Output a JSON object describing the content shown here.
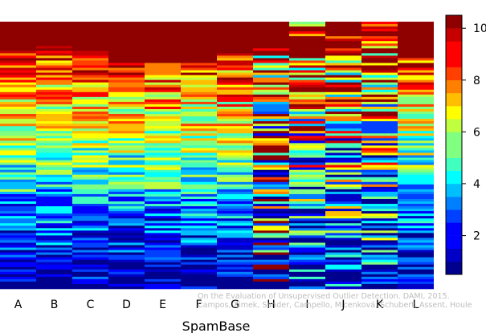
{
  "chart_data": {
    "type": "heatmap",
    "title": "",
    "xlabel": "SpamBase",
    "ylabel": "",
    "columns": [
      "A",
      "B",
      "C",
      "D",
      "E",
      "F",
      "G",
      "H",
      "I",
      "J",
      "K",
      "L"
    ],
    "value_range": [
      0.5,
      10.5
    ],
    "colorbar": {
      "ticks": [
        2,
        4,
        6,
        8,
        10
      ],
      "levels": 20,
      "colors": [
        "#00008f",
        "#0000c6",
        "#0000ff",
        "#0040ff",
        "#0080ff",
        "#00bfff",
        "#00ffff",
        "#40ffbf",
        "#80ff80",
        "#bfff40",
        "#ffff00",
        "#ffbf00",
        "#ff8000",
        "#ff4000",
        "#ff0000",
        "#c60000",
        "#8f0000"
      ]
    },
    "approx_fraction_of_rows_at_max_rank_top": [
      0.11,
      0.09,
      0.11,
      0.15,
      0.15,
      0.15,
      0.12,
      0.0,
      0.0,
      0.04,
      0.0,
      0.14
    ],
    "grid": false,
    "legend": "colorbar-right"
  },
  "watermark": {
    "line1": "On the Evaluation of Unsupervised Outlier Detection. DAMI, 2015.",
    "line2": "Campos, Zimek, Sander, Campello, Micenková, Schubert, Assent, Houle"
  }
}
